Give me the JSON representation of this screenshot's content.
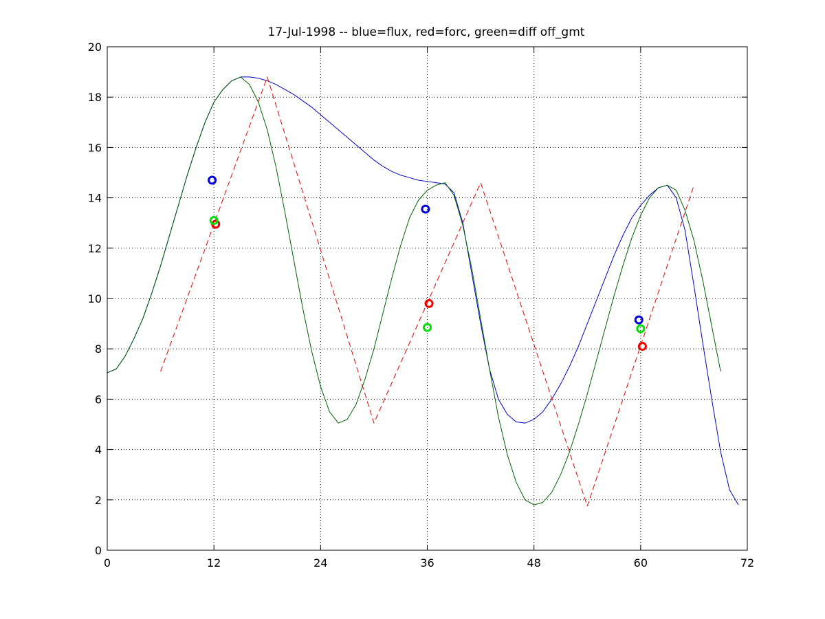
{
  "chart_data": {
    "type": "line",
    "title": "17-Jul-1998 -- blue=flux, red=forc, green=diff off_gmt",
    "xlabel": "",
    "ylabel": "",
    "xlim": [
      0,
      72
    ],
    "ylim": [
      0,
      20
    ],
    "xticks": [
      0,
      12,
      24,
      36,
      48,
      60,
      72
    ],
    "yticks": [
      0,
      2,
      4,
      6,
      8,
      10,
      12,
      14,
      16,
      18,
      20
    ],
    "grid": true,
    "legend": "none",
    "colors": {
      "flux": "#0000c0",
      "forc": "#e00000",
      "diff": "#006000",
      "flux_marker": "#0000e0",
      "forc_marker": "#f00000",
      "diff_marker": "#00e000"
    },
    "series": [
      {
        "key": "flux",
        "style": "solid",
        "points": [
          [
            0,
            7.05
          ],
          [
            1,
            7.2
          ],
          [
            2,
            7.7
          ],
          [
            3,
            8.4
          ],
          [
            4,
            9.2
          ],
          [
            5,
            10.2
          ],
          [
            6,
            11.3
          ],
          [
            7,
            12.5
          ],
          [
            8,
            13.7
          ],
          [
            9,
            14.9
          ],
          [
            10,
            16.0
          ],
          [
            11,
            17.0
          ],
          [
            12,
            17.8
          ],
          [
            13,
            18.3
          ],
          [
            14,
            18.65
          ],
          [
            15,
            18.8
          ],
          [
            16,
            18.8
          ],
          [
            17,
            18.75
          ],
          [
            18,
            18.65
          ],
          [
            19,
            18.5
          ],
          [
            20,
            18.3
          ],
          [
            21,
            18.1
          ],
          [
            22,
            17.85
          ],
          [
            23,
            17.6
          ],
          [
            24,
            17.3
          ],
          [
            25,
            17.0
          ],
          [
            26,
            16.7
          ],
          [
            27,
            16.4
          ],
          [
            28,
            16.1
          ],
          [
            29,
            15.8
          ],
          [
            30,
            15.5
          ],
          [
            31,
            15.25
          ],
          [
            32,
            15.05
          ],
          [
            33,
            14.9
          ],
          [
            34,
            14.8
          ],
          [
            35,
            14.7
          ],
          [
            36,
            14.65
          ],
          [
            37,
            14.6
          ],
          [
            38,
            14.55
          ],
          [
            39,
            14.2
          ],
          [
            40,
            13.0
          ],
          [
            41,
            11.0
          ],
          [
            42,
            9.0
          ],
          [
            43,
            7.2
          ],
          [
            44,
            6.0
          ],
          [
            45,
            5.4
          ],
          [
            46,
            5.1
          ],
          [
            47,
            5.05
          ],
          [
            48,
            5.2
          ],
          [
            49,
            5.5
          ],
          [
            50,
            6.0
          ],
          [
            51,
            6.6
          ],
          [
            52,
            7.3
          ],
          [
            53,
            8.1
          ],
          [
            54,
            9.0
          ],
          [
            55,
            9.9
          ],
          [
            56,
            10.8
          ],
          [
            57,
            11.7
          ],
          [
            58,
            12.5
          ],
          [
            59,
            13.2
          ],
          [
            60,
            13.7
          ],
          [
            61,
            14.1
          ],
          [
            62,
            14.4
          ],
          [
            63,
            14.5
          ],
          [
            64,
            14.0
          ],
          [
            65,
            12.7
          ],
          [
            66,
            10.5
          ],
          [
            67,
            8.2
          ],
          [
            68,
            6.0
          ],
          [
            69,
            3.9
          ],
          [
            70,
            2.4
          ],
          [
            71,
            1.8
          ]
        ]
      },
      {
        "key": "forc",
        "style": "dashed",
        "points": [
          [
            6,
            7.1
          ],
          [
            18,
            18.8
          ],
          [
            30,
            5.05
          ],
          [
            42,
            14.6
          ],
          [
            54,
            1.75
          ],
          [
            66,
            14.5
          ]
        ]
      },
      {
        "key": "diff",
        "style": "solid",
        "points": [
          [
            0,
            7.05
          ],
          [
            1,
            7.2
          ],
          [
            2,
            7.7
          ],
          [
            3,
            8.4
          ],
          [
            4,
            9.2
          ],
          [
            5,
            10.2
          ],
          [
            6,
            11.3
          ],
          [
            7,
            12.5
          ],
          [
            8,
            13.7
          ],
          [
            9,
            14.9
          ],
          [
            10,
            16.0
          ],
          [
            11,
            17.0
          ],
          [
            12,
            17.8
          ],
          [
            13,
            18.3
          ],
          [
            14,
            18.65
          ],
          [
            15,
            18.8
          ],
          [
            16,
            18.5
          ],
          [
            17,
            17.8
          ],
          [
            18,
            16.7
          ],
          [
            19,
            15.2
          ],
          [
            20,
            13.4
          ],
          [
            21,
            11.5
          ],
          [
            22,
            9.6
          ],
          [
            23,
            7.9
          ],
          [
            24,
            6.5
          ],
          [
            25,
            5.5
          ],
          [
            26,
            5.05
          ],
          [
            27,
            5.2
          ],
          [
            28,
            5.8
          ],
          [
            29,
            6.8
          ],
          [
            30,
            8.0
          ],
          [
            31,
            9.4
          ],
          [
            32,
            10.8
          ],
          [
            33,
            12.1
          ],
          [
            34,
            13.2
          ],
          [
            35,
            13.9
          ],
          [
            36,
            14.3
          ],
          [
            37,
            14.5
          ],
          [
            38,
            14.6
          ],
          [
            39,
            14.1
          ],
          [
            40,
            12.9
          ],
          [
            41,
            11.2
          ],
          [
            42,
            9.2
          ],
          [
            43,
            7.2
          ],
          [
            44,
            5.3
          ],
          [
            45,
            3.8
          ],
          [
            46,
            2.7
          ],
          [
            47,
            2.0
          ],
          [
            48,
            1.8
          ],
          [
            49,
            1.9
          ],
          [
            50,
            2.3
          ],
          [
            51,
            3.0
          ],
          [
            52,
            3.9
          ],
          [
            53,
            5.0
          ],
          [
            54,
            6.2
          ],
          [
            55,
            7.5
          ],
          [
            56,
            8.8
          ],
          [
            57,
            10.1
          ],
          [
            58,
            11.3
          ],
          [
            59,
            12.4
          ],
          [
            60,
            13.3
          ],
          [
            61,
            14.0
          ],
          [
            62,
            14.4
          ],
          [
            63,
            14.5
          ],
          [
            64,
            14.3
          ],
          [
            65,
            13.5
          ],
          [
            66,
            12.3
          ],
          [
            67,
            10.7
          ],
          [
            68,
            8.9
          ],
          [
            69,
            7.1
          ]
        ]
      }
    ],
    "markers": [
      {
        "key": "flux_marker",
        "points": [
          [
            11.8,
            14.7
          ],
          [
            35.8,
            13.55
          ],
          [
            59.8,
            9.15
          ]
        ]
      },
      {
        "key": "forc_marker",
        "points": [
          [
            12.2,
            12.95
          ],
          [
            36.2,
            9.8
          ],
          [
            60.2,
            8.1
          ]
        ]
      },
      {
        "key": "diff_marker",
        "points": [
          [
            12.0,
            13.1
          ],
          [
            36.0,
            8.85
          ],
          [
            60.0,
            8.8
          ]
        ]
      }
    ]
  }
}
